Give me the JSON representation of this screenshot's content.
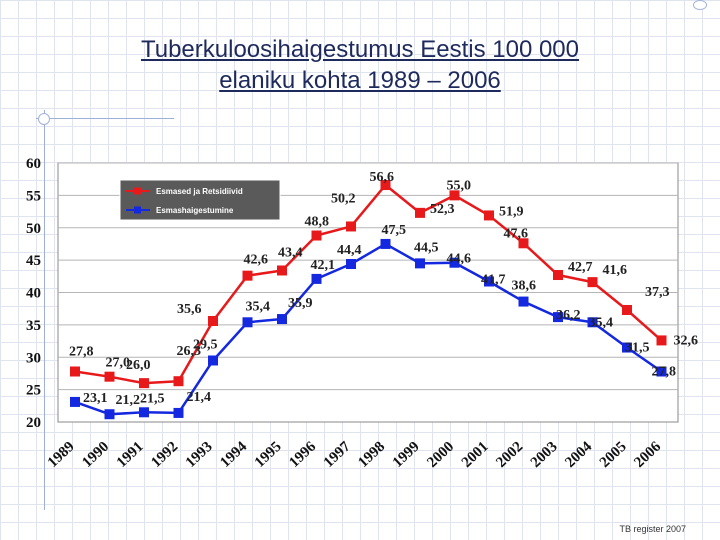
{
  "title_line1": "Tuberkuloosihaigestumus Eestis 100 000",
  "title_line2": "elaniku kohta 1989 – 2006",
  "footer": "TB register 2007",
  "chart_data": {
    "type": "line",
    "categories": [
      "1989",
      "1990",
      "1991",
      "1992",
      "1993",
      "1994",
      "1995",
      "1996",
      "1997",
      "1998",
      "1999",
      "2000",
      "2001",
      "2002",
      "2003",
      "2004",
      "2005",
      "2006"
    ],
    "series": [
      {
        "name": "Esmased ja Retsidiivid",
        "color": "#e8191b",
        "values": [
          27.8,
          27.0,
          26.0,
          26.3,
          35.6,
          42.6,
          43.4,
          48.8,
          50.2,
          56.6,
          52.3,
          55.0,
          51.9,
          47.6,
          42.7,
          41.6,
          37.3,
          32.6
        ],
        "labels": [
          "27,8",
          "27,0",
          "26,0",
          "26,3",
          "35,6",
          "42,6",
          "43,4",
          "48,8",
          "50,2",
          "56,6",
          "52,3",
          "55,0",
          "51,9",
          "47,6",
          "42,7",
          "41,6",
          "37,3",
          "32,6"
        ]
      },
      {
        "name": "Esmashaigestumine",
        "color": "#1428e0",
        "values": [
          23.1,
          21.2,
          21.5,
          21.4,
          29.5,
          35.4,
          35.9,
          42.1,
          44.4,
          47.5,
          44.5,
          44.6,
          41.7,
          38.6,
          36.2,
          35.4,
          31.5,
          27.8
        ],
        "labels": [
          "23,1",
          "21,2",
          "21,5",
          "21,4",
          "29,5",
          "35,4",
          "35,9",
          "42,1",
          "44,4",
          "47,5",
          "44,5",
          "44,6",
          "41,7",
          "38,6",
          "36,2",
          "35,4",
          "31,5",
          "27,8"
        ]
      }
    ],
    "y_ticks": [
      "20",
      "25",
      "30",
      "35",
      "40",
      "45",
      "50",
      "55",
      "60"
    ],
    "ylim": [
      20,
      60
    ],
    "grid": true,
    "legend": "top-left"
  }
}
